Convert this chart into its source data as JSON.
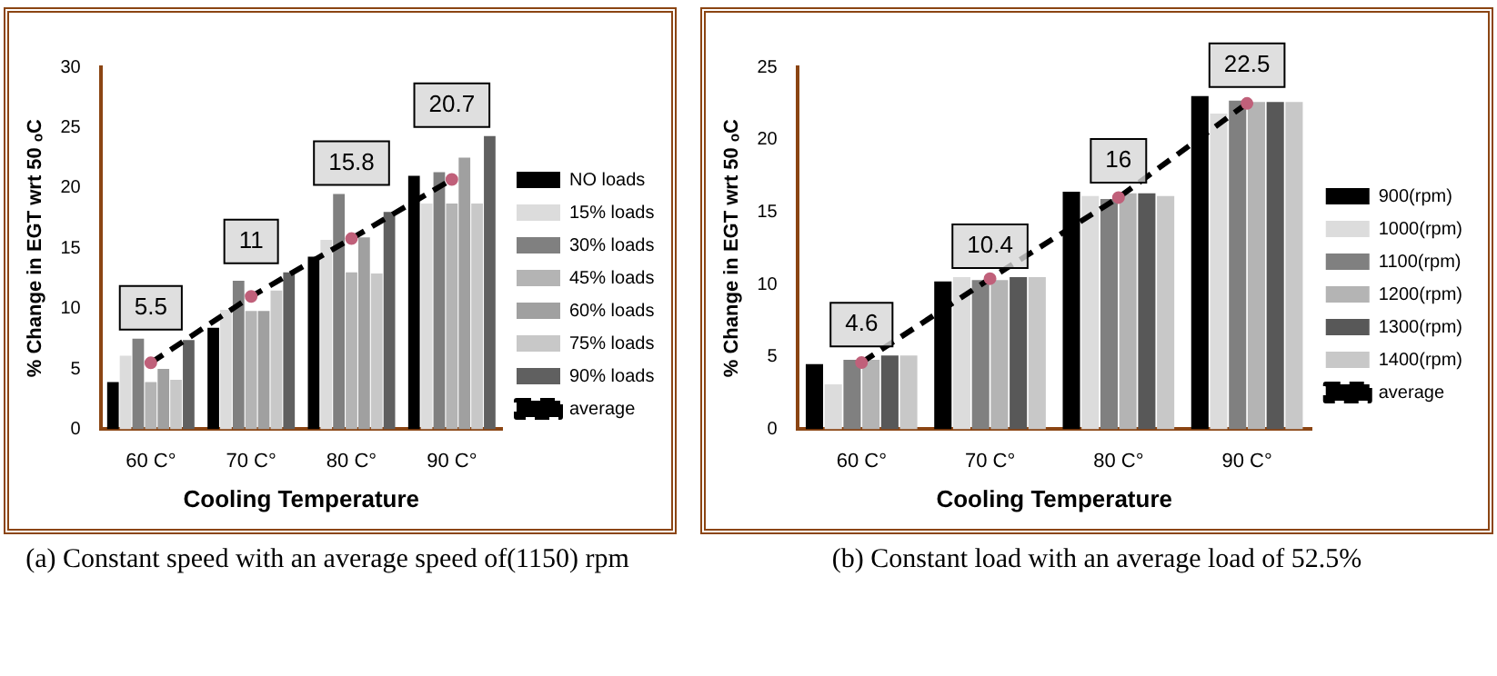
{
  "chart_data": [
    {
      "type": "bar",
      "categories": [
        "60 C°",
        "70 C°",
        "80 C°",
        "90 C°"
      ],
      "xlabel": "Cooling Temperature",
      "ylabel": "% Change in EGT wrt 50 ₒC",
      "ylim": [
        0,
        30
      ],
      "yticks": [
        0,
        5,
        10,
        15,
        20,
        25,
        30
      ],
      "grid": false,
      "legend": "right",
      "annotations": [
        "(a) Constant speed with an average speed of(1150) rpm"
      ],
      "series": [
        {
          "name": "NO loads",
          "color": "#000000",
          "values": [
            3.9,
            8.4,
            14.3,
            21.0
          ]
        },
        {
          "name": "15% loads",
          "color": "#dcdcdc",
          "values": [
            6.1,
            9.9,
            15.7,
            18.7
          ]
        },
        {
          "name": "30% loads",
          "color": "#808080",
          "values": [
            7.5,
            12.3,
            19.5,
            21.3
          ]
        },
        {
          "name": "45% loads",
          "color": "#b4b4b4",
          "values": [
            3.9,
            9.8,
            13.0,
            18.7
          ]
        },
        {
          "name": "60% loads",
          "color": "#a0a0a0",
          "values": [
            5.0,
            9.8,
            15.9,
            22.5
          ]
        },
        {
          "name": "75% loads",
          "color": "#c8c8c8",
          "values": [
            4.1,
            11.5,
            12.9,
            18.7
          ]
        },
        {
          "name": "90% loads",
          "color": "#606060",
          "values": [
            7.4,
            13.0,
            18.0,
            24.3
          ]
        },
        {
          "name": "average",
          "type": "line",
          "color": "#000000",
          "line_style": "dashed",
          "marker": "circle",
          "values": [
            5.5,
            11,
            15.8,
            20.7
          ],
          "value_labels": [
            "5.5",
            "11",
            "15.8",
            "20.7"
          ]
        }
      ]
    },
    {
      "type": "bar",
      "categories": [
        "60 C°",
        "70 C°",
        "80 C°",
        "90 C°"
      ],
      "xlabel": "Cooling Temperature",
      "ylabel": "% Change in EGT wrt 50 ₒC",
      "ylim": [
        0,
        25
      ],
      "yticks": [
        0,
        5,
        10,
        15,
        20,
        25
      ],
      "grid": false,
      "legend": "right",
      "annotations": [
        "(b) Constant load with an average load of 52.5%"
      ],
      "series": [
        {
          "name": "900(rpm)",
          "color": "#000000",
          "values": [
            4.5,
            10.2,
            16.4,
            23.0
          ]
        },
        {
          "name": "1000(rpm)",
          "color": "#dcdcdc",
          "values": [
            3.1,
            10.5,
            16.1,
            21.8
          ]
        },
        {
          "name": "1100(rpm)",
          "color": "#808080",
          "values": [
            4.8,
            10.3,
            15.9,
            22.7
          ]
        },
        {
          "name": "1200(rpm)",
          "color": "#b4b4b4",
          "values": [
            4.8,
            10.3,
            16.3,
            22.6
          ]
        },
        {
          "name": "1300(rpm)",
          "color": "#585858",
          "values": [
            5.1,
            10.5,
            16.3,
            22.6
          ]
        },
        {
          "name": "1400(rpm)",
          "color": "#c8c8c8",
          "values": [
            5.1,
            10.5,
            16.1,
            22.6
          ]
        },
        {
          "name": "average",
          "type": "line",
          "color": "#000000",
          "line_style": "dashed",
          "marker": "circle",
          "values": [
            4.6,
            10.4,
            16,
            22.5
          ],
          "value_labels": [
            "4.6",
            "10.4",
            "16",
            "22.5"
          ]
        }
      ]
    }
  ]
}
